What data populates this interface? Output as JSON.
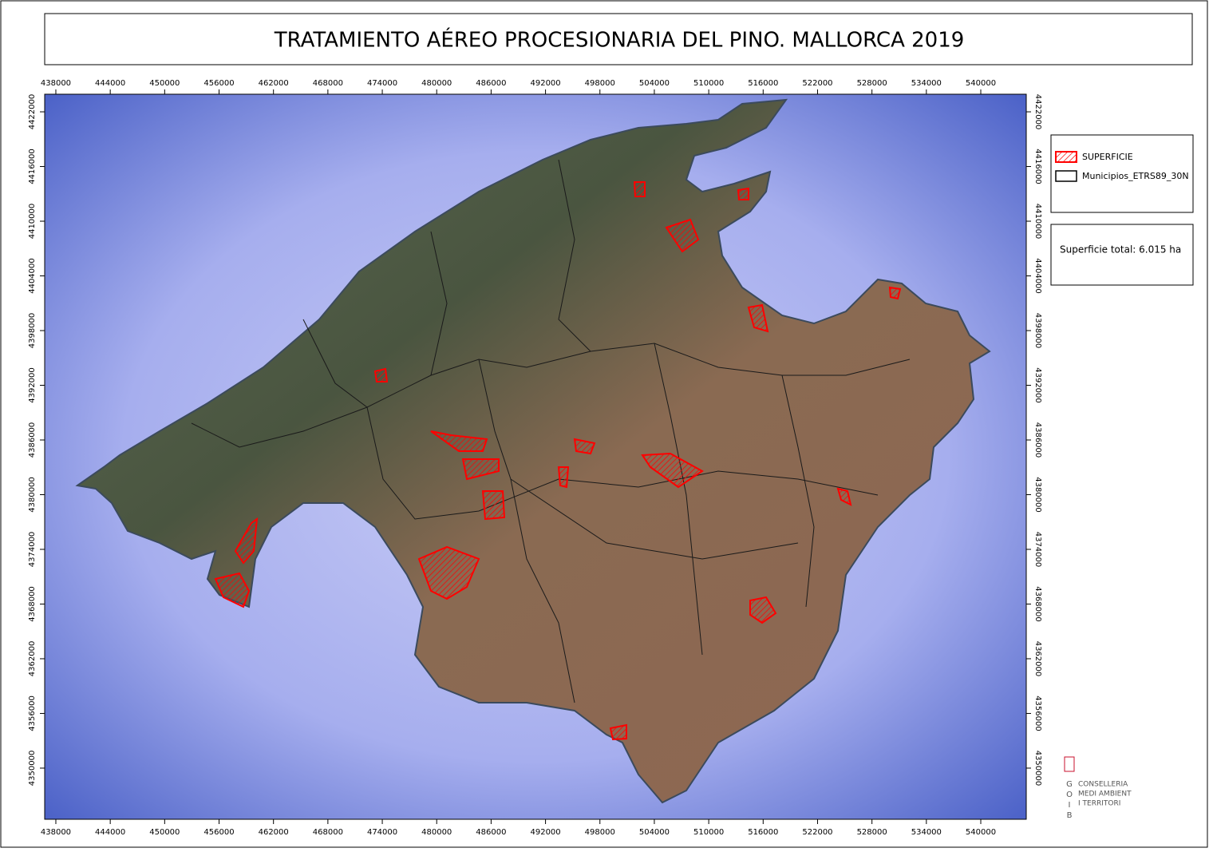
{
  "map": {
    "title": "TRATAMIENTO AÉREO PROCESIONARIA DEL PINO. MALLORCA 2019",
    "xlim": [
      436770,
      545015
    ],
    "ylim": [
      4344390,
      4423930
    ],
    "xticks": [
      438000,
      444000,
      450000,
      456000,
      462000,
      468000,
      474000,
      480000,
      486000,
      492000,
      498000,
      504000,
      510000,
      516000,
      522000,
      528000,
      534000,
      540000
    ],
    "yticks": [
      4350000,
      4356000,
      4362000,
      4368000,
      4374000,
      4380000,
      4386000,
      4392000,
      4398000,
      4404000,
      4410000,
      4416000,
      4422000
    ],
    "legend": [
      {
        "label": "SUPERFICIE",
        "color": "#ff0000"
      },
      {
        "label": "Municipios_ETRS89_30N",
        "color": "#000000"
      }
    ],
    "total": "Superficie total: 6.015 ha",
    "logo": {
      "letters": [
        "G",
        "O",
        "I",
        "B"
      ],
      "lines": [
        "CONSELLERIA",
        "MEDI AMBIENT",
        "I TERRITORI"
      ]
    }
  }
}
